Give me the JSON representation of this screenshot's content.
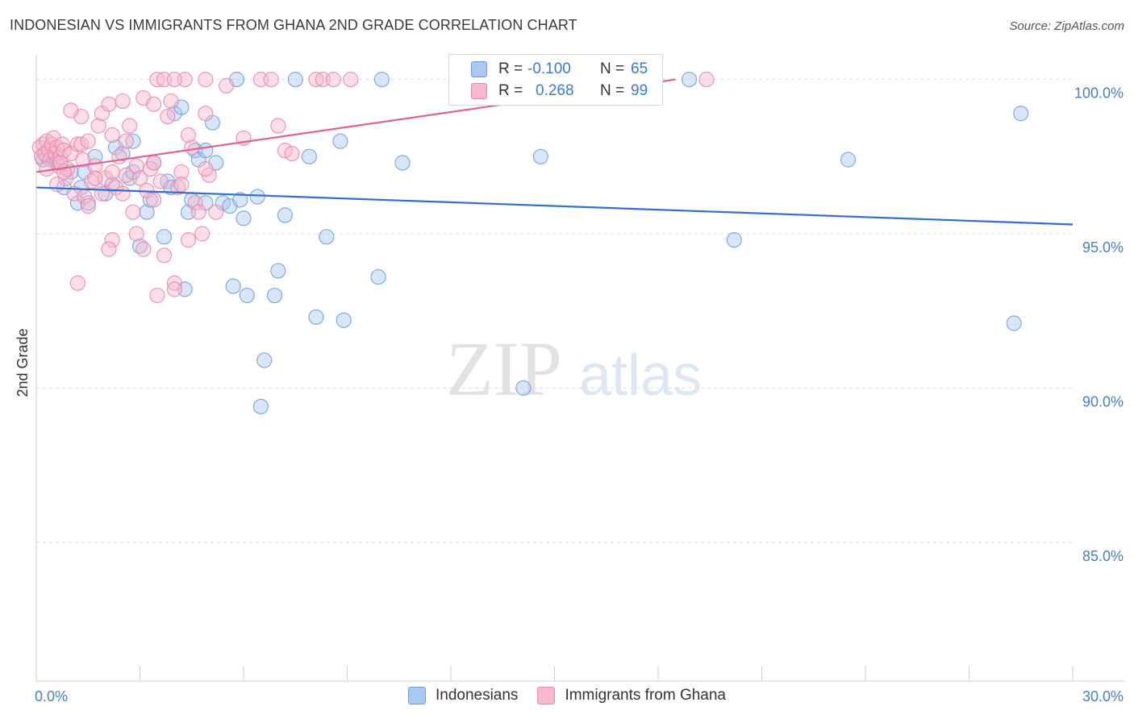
{
  "title": "INDONESIAN VS IMMIGRANTS FROM GHANA 2ND GRADE CORRELATION CHART",
  "source": "Source: ZipAtlas.com",
  "watermark": {
    "zip": "ZIP",
    "atlas": "atlas"
  },
  "legend_top": {
    "rows": [
      {
        "r_label": "R =",
        "r_value": "-0.100",
        "n_label": "N =",
        "n_value": "65",
        "color": "#aac8f0",
        "border": "#6b9de0"
      },
      {
        "r_label": "R =",
        "r_value": "0.268",
        "n_label": "N =",
        "n_value": "99",
        "color": "#f7b9cc",
        "border": "#ec86a6"
      }
    ]
  },
  "legend_bottom": [
    {
      "label": "Indonesians",
      "color": "#aac8f0",
      "border": "#6b9de0"
    },
    {
      "label": "Immigrants from Ghana",
      "color": "#f7b9cc",
      "border": "#ec86a6"
    }
  ],
  "chart_data": {
    "type": "scatter",
    "title": "INDONESIAN VS IMMIGRANTS FROM GHANA 2ND GRADE CORRELATION CHART",
    "xlabel": "",
    "ylabel": "2nd Grade",
    "xlim": [
      0,
      30
    ],
    "ylim": [
      80.5,
      100.8
    ],
    "x_tick_labels": [
      "0.0%",
      "30.0%"
    ],
    "y_ticks": [
      85,
      90,
      95,
      100
    ],
    "y_tick_labels": [
      "85.0%",
      "90.0%",
      "95.0%",
      "100.0%"
    ],
    "grid": true,
    "series": [
      {
        "name": "Indonesians",
        "color": "#6b9de0",
        "fill": "#aac8f0",
        "trend": {
          "x": [
            0,
            30
          ],
          "y": [
            96.5,
            95.3
          ]
        },
        "points": [
          [
            0.2,
            97.4
          ],
          [
            0.3,
            97.5
          ],
          [
            0.5,
            97.4
          ],
          [
            0.6,
            97.3
          ],
          [
            0.8,
            96.5
          ],
          [
            1.0,
            97.0
          ],
          [
            1.2,
            96.0
          ],
          [
            1.3,
            96.5
          ],
          [
            1.4,
            97.0
          ],
          [
            1.7,
            97.5
          ],
          [
            2.0,
            96.3
          ],
          [
            2.2,
            96.6
          ],
          [
            2.3,
            97.8
          ],
          [
            2.5,
            97.6
          ],
          [
            2.7,
            96.8
          ],
          [
            2.8,
            98.0
          ],
          [
            3.0,
            94.6
          ],
          [
            3.2,
            95.7
          ],
          [
            3.3,
            96.1
          ],
          [
            3.4,
            97.3
          ],
          [
            3.7,
            94.9
          ],
          [
            3.8,
            96.7
          ],
          [
            3.9,
            96.5
          ],
          [
            4.0,
            98.9
          ],
          [
            4.2,
            99.1
          ],
          [
            4.3,
            93.2
          ],
          [
            4.4,
            95.7
          ],
          [
            4.5,
            96.1
          ],
          [
            4.6,
            97.7
          ],
          [
            4.7,
            97.4
          ],
          [
            4.9,
            97.7
          ],
          [
            5.1,
            98.6
          ],
          [
            5.2,
            97.3
          ],
          [
            5.4,
            96.0
          ],
          [
            5.6,
            95.9
          ],
          [
            5.7,
            93.3
          ],
          [
            5.8,
            100.0
          ],
          [
            5.9,
            96.1
          ],
          [
            6.1,
            93.0
          ],
          [
            6.4,
            96.2
          ],
          [
            6.5,
            89.4
          ],
          [
            6.6,
            90.9
          ],
          [
            6.9,
            93.0
          ],
          [
            7.0,
            93.8
          ],
          [
            7.2,
            95.6
          ],
          [
            7.5,
            100.0
          ],
          [
            7.9,
            97.5
          ],
          [
            8.1,
            92.3
          ],
          [
            8.4,
            94.9
          ],
          [
            8.8,
            98.0
          ],
          [
            8.9,
            92.2
          ],
          [
            9.9,
            93.6
          ],
          [
            10.0,
            100.0
          ],
          [
            10.6,
            97.3
          ],
          [
            14.1,
            90.0
          ],
          [
            14.6,
            97.5
          ],
          [
            18.9,
            100.0
          ],
          [
            20.2,
            94.8
          ],
          [
            23.5,
            97.4
          ],
          [
            28.3,
            92.1
          ],
          [
            28.5,
            98.9
          ],
          [
            1.5,
            96.0
          ],
          [
            2.8,
            97.0
          ],
          [
            4.9,
            96.0
          ],
          [
            6.0,
            95.5
          ]
        ]
      },
      {
        "name": "Immigrants from Ghana",
        "color": "#ec86a6",
        "fill": "#f7b9cc",
        "trend": {
          "x": [
            0,
            18.5
          ],
          "y": [
            97.0,
            100.0
          ]
        },
        "points": [
          [
            0.1,
            97.8
          ],
          [
            0.15,
            97.5
          ],
          [
            0.2,
            97.9
          ],
          [
            0.25,
            97.6
          ],
          [
            0.3,
            98.0
          ],
          [
            0.35,
            97.7
          ],
          [
            0.4,
            97.4
          ],
          [
            0.45,
            97.9
          ],
          [
            0.5,
            98.1
          ],
          [
            0.55,
            97.6
          ],
          [
            0.6,
            97.8
          ],
          [
            0.65,
            97.2
          ],
          [
            0.7,
            97.5
          ],
          [
            0.75,
            97.9
          ],
          [
            0.8,
            97.7
          ],
          [
            0.85,
            96.8
          ],
          [
            0.9,
            97.1
          ],
          [
            1.0,
            97.6
          ],
          [
            1.1,
            96.3
          ],
          [
            1.2,
            97.9
          ],
          [
            1.3,
            98.8
          ],
          [
            1.35,
            97.4
          ],
          [
            1.4,
            96.2
          ],
          [
            1.5,
            95.9
          ],
          [
            1.6,
            96.7
          ],
          [
            1.7,
            97.2
          ],
          [
            1.8,
            98.5
          ],
          [
            1.9,
            98.9
          ],
          [
            2.0,
            96.8
          ],
          [
            2.1,
            99.2
          ],
          [
            2.2,
            97.0
          ],
          [
            2.3,
            96.5
          ],
          [
            2.4,
            97.5
          ],
          [
            2.5,
            99.3
          ],
          [
            2.6,
            96.9
          ],
          [
            2.7,
            98.5
          ],
          [
            2.8,
            95.7
          ],
          [
            2.9,
            97.2
          ],
          [
            3.0,
            96.8
          ],
          [
            3.1,
            99.4
          ],
          [
            3.2,
            96.4
          ],
          [
            3.3,
            97.1
          ],
          [
            3.4,
            99.2
          ],
          [
            3.5,
            100.0
          ],
          [
            3.6,
            96.7
          ],
          [
            3.7,
            100.0
          ],
          [
            3.8,
            98.8
          ],
          [
            3.9,
            99.3
          ],
          [
            4.0,
            93.4
          ],
          [
            4.1,
            96.5
          ],
          [
            4.2,
            97.0
          ],
          [
            4.3,
            100.0
          ],
          [
            4.4,
            94.8
          ],
          [
            4.5,
            97.8
          ],
          [
            4.6,
            96.0
          ],
          [
            4.7,
            95.7
          ],
          [
            4.8,
            95.0
          ],
          [
            4.9,
            98.9
          ],
          [
            5.0,
            96.9
          ],
          [
            5.2,
            95.7
          ],
          [
            5.5,
            99.8
          ],
          [
            6.0,
            98.1
          ],
          [
            6.5,
            100.0
          ],
          [
            6.8,
            100.0
          ],
          [
            7.0,
            98.5
          ],
          [
            7.2,
            97.7
          ],
          [
            7.4,
            97.6
          ],
          [
            8.1,
            100.0
          ],
          [
            8.3,
            100.0
          ],
          [
            8.6,
            100.0
          ],
          [
            9.1,
            100.0
          ],
          [
            19.4,
            100.0
          ],
          [
            1.0,
            99.0
          ],
          [
            1.3,
            97.9
          ],
          [
            0.8,
            97.0
          ],
          [
            1.5,
            98.0
          ],
          [
            1.9,
            96.3
          ],
          [
            2.2,
            98.2
          ],
          [
            2.6,
            98.0
          ],
          [
            3.4,
            96.1
          ],
          [
            3.7,
            94.3
          ],
          [
            4.0,
            93.2
          ],
          [
            4.4,
            98.2
          ],
          [
            4.2,
            96.6
          ],
          [
            0.6,
            96.6
          ],
          [
            1.2,
            93.4
          ],
          [
            2.2,
            94.8
          ],
          [
            2.9,
            95.0
          ],
          [
            3.1,
            94.5
          ],
          [
            3.5,
            93.0
          ],
          [
            4.9,
            97.1
          ],
          [
            4.9,
            100.0
          ],
          [
            4.0,
            100.0
          ],
          [
            0.7,
            97.3
          ],
          [
            1.7,
            96.8
          ],
          [
            2.5,
            96.3
          ],
          [
            3.4,
            97.3
          ],
          [
            0.3,
            97.1
          ],
          [
            2.1,
            94.5
          ]
        ]
      }
    ]
  }
}
